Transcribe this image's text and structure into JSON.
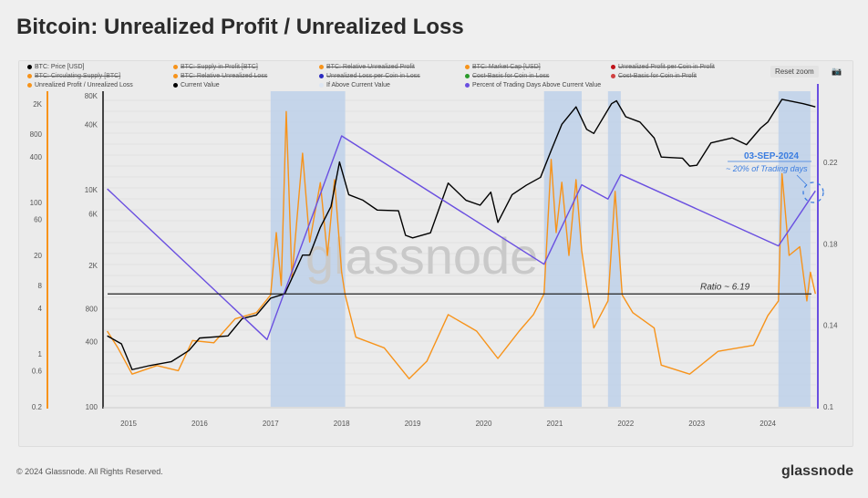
{
  "title": "Bitcoin: Unrealized Profit / Unrealized Loss",
  "toolbar": {
    "reset_zoom": "Reset zoom",
    "camera_icon": "camera-icon"
  },
  "legend": [
    {
      "label": "BTC: Price [USD]",
      "color": "#000000",
      "enabled": true
    },
    {
      "label": "BTC: Supply in Profit [BTC]",
      "color": "#f7931a",
      "enabled": false
    },
    {
      "label": "BTC: Relative Unrealized Profit",
      "color": "#f7931a",
      "enabled": false
    },
    {
      "label": "BTC: Market Cap [USD]",
      "color": "#f7931a",
      "enabled": false
    },
    {
      "label": "Unrealized Profit per Coin in Profit",
      "color": "#c0131a",
      "enabled": false
    },
    {
      "label": "BTC: Circulating Supply [BTC]",
      "color": "#f7931a",
      "enabled": false
    },
    {
      "label": "BTC: Relative Unrealized Loss",
      "color": "#f7931a",
      "enabled": false
    },
    {
      "label": "Unrealized Loss per Coin in Loss",
      "color": "#2a2ac0",
      "enabled": false
    },
    {
      "label": "Cost-Basis for Coin in Loss",
      "color": "#2a9a2a",
      "enabled": false
    },
    {
      "label": "Cost-Basis for Coin in Profit",
      "color": "#d04040",
      "enabled": false
    },
    {
      "label": "Unrealized Profit / Unrealized Loss",
      "color": "#f7931a",
      "enabled": true
    },
    {
      "label": "Current Value",
      "color": "#000000",
      "enabled": true
    },
    {
      "label": "If Above Current Value",
      "color": "#dde6f3",
      "enabled": true
    },
    {
      "label": "Percent of Trading Days Above Current Value",
      "color": "#6a4fe0",
      "enabled": true
    }
  ],
  "annotation": {
    "date": "03-SEP-2024",
    "text": "~ 20% of Trading days",
    "ratio": "Ratio ~ 6.19"
  },
  "watermark": "glassnode",
  "footer": {
    "copyright": "© 2024 Glassnode. All Rights Reserved.",
    "logo": "glassnode"
  },
  "chart_data": {
    "type": "line",
    "x_ticks": [
      "2015",
      "2016",
      "2017",
      "2018",
      "2019",
      "2020",
      "2021",
      "2022",
      "2023",
      "2024"
    ],
    "axes": {
      "ratio_axis": {
        "scale": "log",
        "ticks": [
          "0.2",
          "0.6",
          "1",
          "4",
          "8",
          "20",
          "60",
          "100",
          "400",
          "800",
          "2K"
        ],
        "range": [
          0.2,
          2000
        ],
        "color": "#f7931a"
      },
      "price_axis": {
        "scale": "log",
        "ticks": [
          "100",
          "400",
          "800",
          "2K",
          "6K",
          "10K",
          "40K",
          "80K"
        ],
        "range": [
          100,
          80000
        ]
      },
      "percent_axis": {
        "scale": "linear",
        "ticks": [
          "0.1",
          "0.14",
          "0.18",
          "0.22"
        ],
        "range": [
          0.1,
          0.25
        ],
        "color": "#6a4fe0"
      }
    },
    "current_value": 6.19,
    "colors": {
      "price": "#000000",
      "ratio": "#f7931a",
      "percent": "#6a4fe0",
      "band": "#b8cdea"
    },
    "above_current_periods": [
      [
        2017.0,
        2018.05
      ],
      [
        2020.85,
        2021.38
      ],
      [
        2021.75,
        2021.93
      ],
      [
        2024.15,
        2024.6
      ]
    ],
    "series": [
      {
        "name": "BTC: Price [USD]",
        "axis": "price",
        "points": [
          [
            2014.7,
            450
          ],
          [
            2014.9,
            380
          ],
          [
            2015.05,
            220
          ],
          [
            2015.3,
            240
          ],
          [
            2015.6,
            260
          ],
          [
            2015.85,
            330
          ],
          [
            2016.0,
            430
          ],
          [
            2016.4,
            450
          ],
          [
            2016.6,
            650
          ],
          [
            2016.8,
            700
          ],
          [
            2017.0,
            1000
          ],
          [
            2017.2,
            1100
          ],
          [
            2017.45,
            2500
          ],
          [
            2017.55,
            2500
          ],
          [
            2017.7,
            4500
          ],
          [
            2017.85,
            7000
          ],
          [
            2017.97,
            18000
          ],
          [
            2018.1,
            9000
          ],
          [
            2018.3,
            8000
          ],
          [
            2018.5,
            6500
          ],
          [
            2018.8,
            6400
          ],
          [
            2018.9,
            3800
          ],
          [
            2019.0,
            3600
          ],
          [
            2019.25,
            4000
          ],
          [
            2019.5,
            11500
          ],
          [
            2019.75,
            8000
          ],
          [
            2019.95,
            7200
          ],
          [
            2020.1,
            9500
          ],
          [
            2020.2,
            5000
          ],
          [
            2020.4,
            9000
          ],
          [
            2020.6,
            11000
          ],
          [
            2020.8,
            13000
          ],
          [
            2020.95,
            23000
          ],
          [
            2021.1,
            40000
          ],
          [
            2021.3,
            58000
          ],
          [
            2021.45,
            36000
          ],
          [
            2021.55,
            33000
          ],
          [
            2021.8,
            62000
          ],
          [
            2021.87,
            66000
          ],
          [
            2022.0,
            47000
          ],
          [
            2022.2,
            42000
          ],
          [
            2022.4,
            30000
          ],
          [
            2022.5,
            20000
          ],
          [
            2022.8,
            19500
          ],
          [
            2022.9,
            16500
          ],
          [
            2023.0,
            16800
          ],
          [
            2023.2,
            27000
          ],
          [
            2023.5,
            30000
          ],
          [
            2023.7,
            26000
          ],
          [
            2023.9,
            37000
          ],
          [
            2024.0,
            42000
          ],
          [
            2024.2,
            68000
          ],
          [
            2024.5,
            62000
          ],
          [
            2024.67,
            58000
          ]
        ]
      },
      {
        "name": "Unrealized Profit / Unrealized Loss",
        "axis": "ratio",
        "points": [
          [
            2014.7,
            2.0
          ],
          [
            2014.85,
            1.2
          ],
          [
            2015.05,
            0.54
          ],
          [
            2015.4,
            0.7
          ],
          [
            2015.7,
            0.6
          ],
          [
            2015.9,
            1.5
          ],
          [
            2016.2,
            1.4
          ],
          [
            2016.5,
            2.9
          ],
          [
            2016.8,
            3.5
          ],
          [
            2017.0,
            6
          ],
          [
            2017.08,
            40
          ],
          [
            2017.15,
            8
          ],
          [
            2017.22,
            1590
          ],
          [
            2017.3,
            10
          ],
          [
            2017.45,
            447
          ],
          [
            2017.55,
            30
          ],
          [
            2017.7,
            183
          ],
          [
            2017.8,
            20
          ],
          [
            2017.9,
            200
          ],
          [
            2018.0,
            12
          ],
          [
            2018.05,
            6
          ],
          [
            2018.2,
            1.66
          ],
          [
            2018.6,
            1.2
          ],
          [
            2018.95,
            0.47
          ],
          [
            2019.2,
            0.8
          ],
          [
            2019.5,
            3.3
          ],
          [
            2019.9,
            2.0
          ],
          [
            2020.2,
            0.87
          ],
          [
            2020.5,
            2.0
          ],
          [
            2020.7,
            3.3
          ],
          [
            2020.85,
            6.2
          ],
          [
            2020.95,
            370
          ],
          [
            2021.02,
            40
          ],
          [
            2021.1,
            185
          ],
          [
            2021.2,
            20
          ],
          [
            2021.3,
            200
          ],
          [
            2021.38,
            23
          ],
          [
            2021.45,
            8
          ],
          [
            2021.55,
            2.2
          ],
          [
            2021.75,
            5
          ],
          [
            2021.85,
            140
          ],
          [
            2021.95,
            6
          ],
          [
            2022.1,
            3.5
          ],
          [
            2022.4,
            2.2
          ],
          [
            2022.5,
            0.71
          ],
          [
            2022.9,
            0.54
          ],
          [
            2023.3,
            1.08
          ],
          [
            2023.8,
            1.3
          ],
          [
            2024.0,
            3.2
          ],
          [
            2024.15,
            5
          ],
          [
            2024.2,
            240
          ],
          [
            2024.3,
            20
          ],
          [
            2024.45,
            26
          ],
          [
            2024.55,
            5
          ],
          [
            2024.6,
            12
          ],
          [
            2024.67,
            6.2
          ]
        ]
      },
      {
        "name": "Percent of Trading Days Above Current Value",
        "axis": "percent",
        "points": [
          [
            2014.7,
            0.207
          ],
          [
            2016.95,
            0.133
          ],
          [
            2018.0,
            0.233
          ],
          [
            2020.85,
            0.17
          ],
          [
            2021.38,
            0.209
          ],
          [
            2021.75,
            0.202
          ],
          [
            2021.93,
            0.214
          ],
          [
            2024.15,
            0.179
          ],
          [
            2024.67,
            0.206
          ]
        ]
      }
    ]
  }
}
